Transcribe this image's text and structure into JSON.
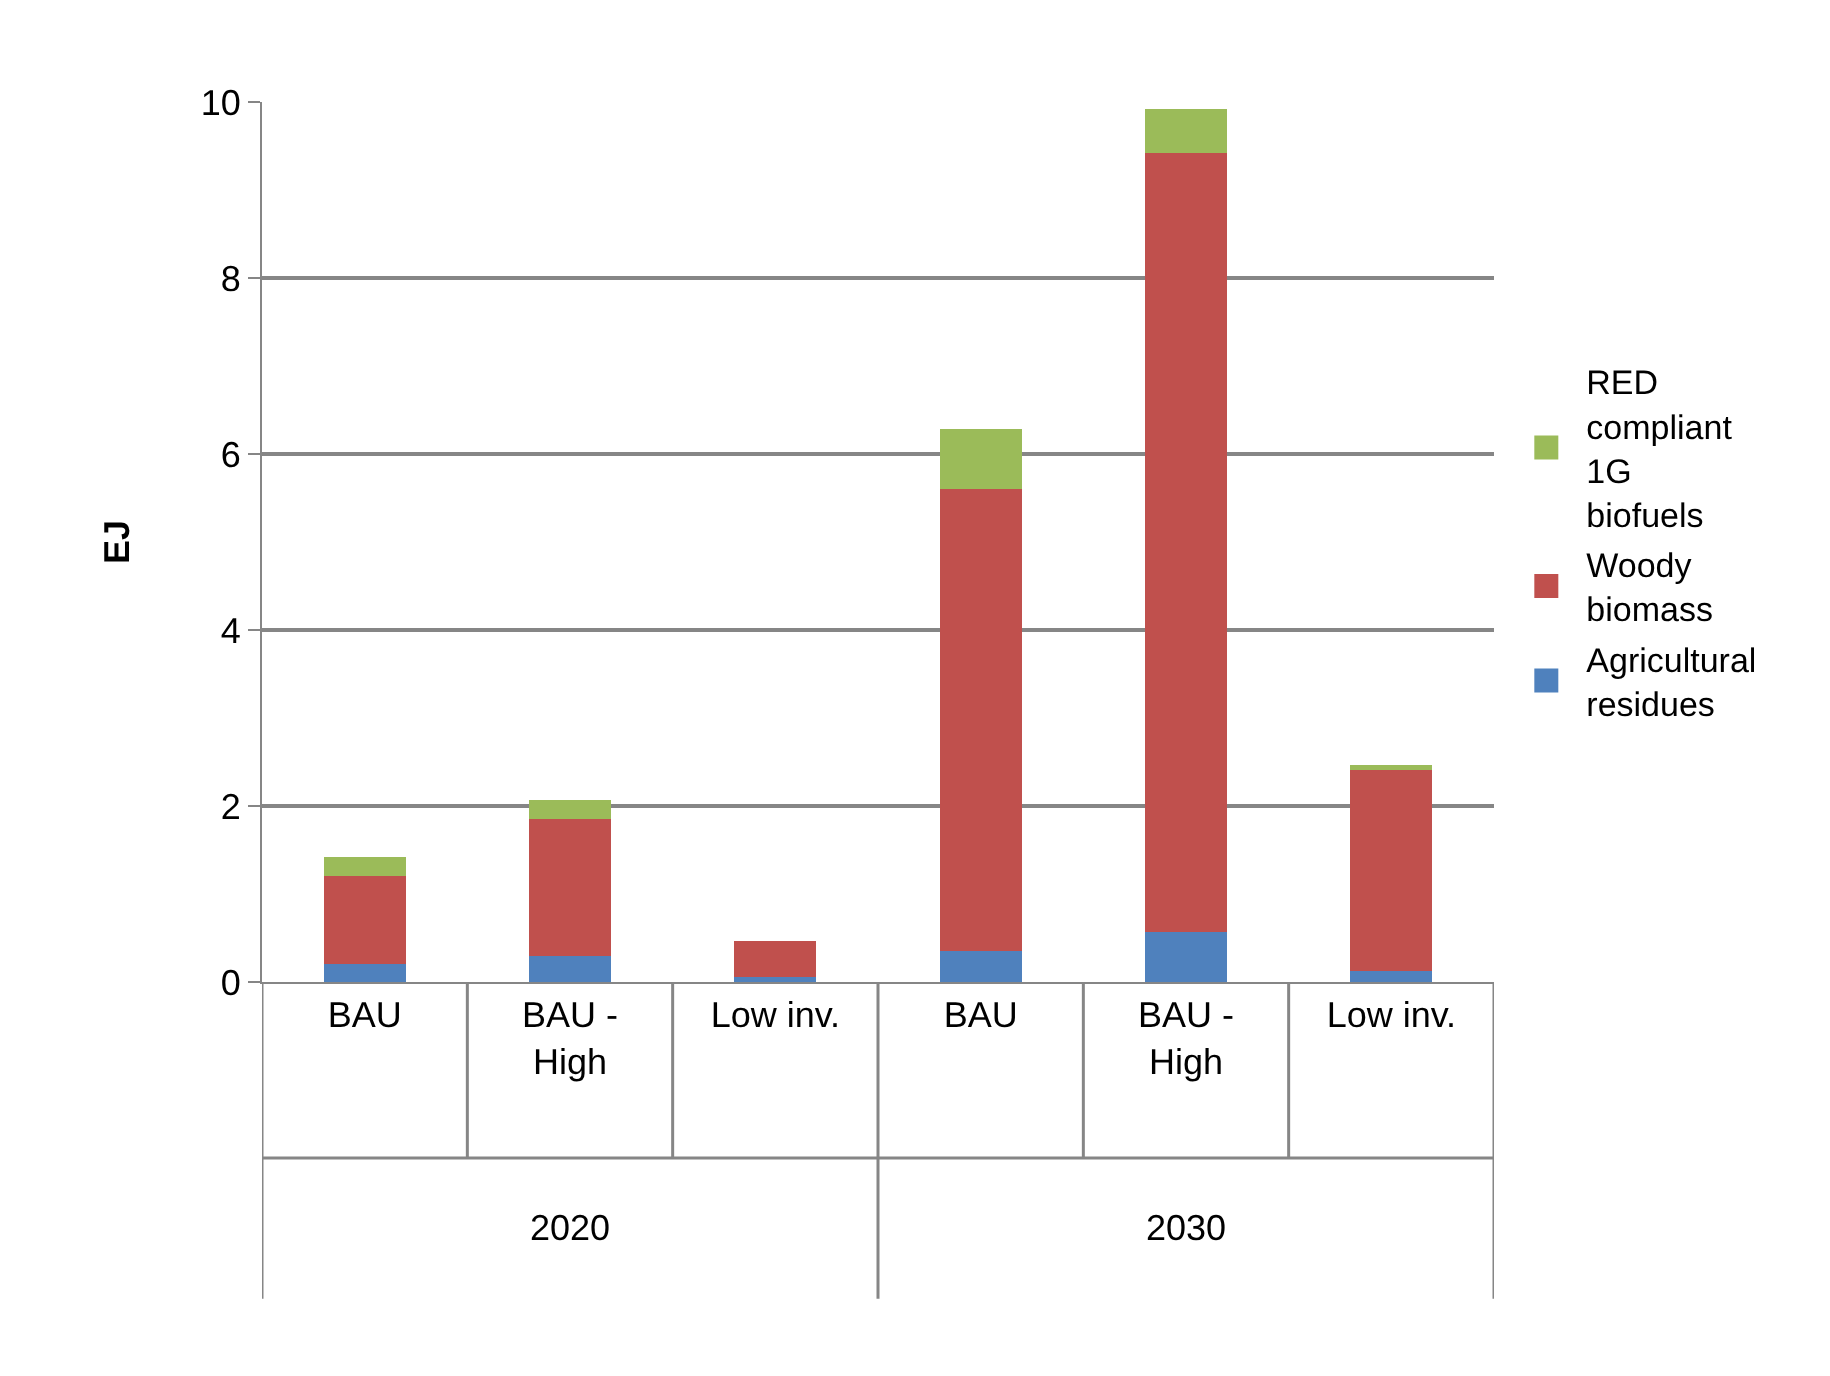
{
  "chart_data": {
    "type": "bar",
    "stacked": true,
    "ylabel": "EJ",
    "categories": [
      "BAU",
      "BAU - High",
      "Low inv.",
      "BAU",
      "BAU - High",
      "Low inv."
    ],
    "series": [
      {
        "name": "Agricultural residues",
        "color": "#4f81bd",
        "values": [
          0.2,
          0.3,
          0.06,
          0.35,
          0.57,
          0.12
        ]
      },
      {
        "name": "Woody biomass",
        "color": "#c0504d",
        "values": [
          1.0,
          1.55,
          0.41,
          5.25,
          8.85,
          2.31
        ]
      },
      {
        "name": "RED compliant 1G biofuels",
        "color": "#9bbb59",
        "values": [
          0.22,
          0.22,
          null,
          0.68,
          0.5,
          0.04
        ]
      }
    ],
    "annotations": [
      "2020",
      "2030"
    ],
    "ylim": [
      0,
      10
    ],
    "yticks": [
      0,
      2,
      4,
      6,
      8,
      10
    ],
    "grid": "y",
    "legend": "right"
  }
}
